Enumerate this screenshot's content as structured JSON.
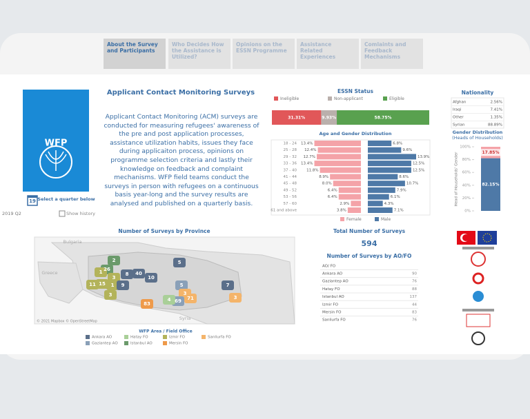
{
  "tabs": [
    "About the Survey and Participants",
    "Who Decides How the Assistance is Utilized?",
    "Opinions on the ESSN Programme",
    "Assistance Related Experiences",
    "Comlaints and Feedback Mechanisms"
  ],
  "sidebar": {
    "logo": "WFP",
    "calendar_day": "19",
    "select_label": "Select a quarter below",
    "quarter": "2019 Q2",
    "show_history": "Show history"
  },
  "intro": {
    "title": "Applicant Contact Monitoring Surveys",
    "text": "Applicant Contact Monitoring (ACM) surveys are conducted for measuring refugees' awareness of the pre and post application processes, assistance utilization habits, issues they face during applicaiton process, opinions on programme selection criteria and lastly their knowledge on feedback and complaint mechanisms. WFP field teams conduct the surveys in person with refugees on a continuous basis year-long and the survey results are analysed and published on a quarterly basis."
  },
  "chart_data": [
    {
      "type": "stacked-bar",
      "title": "ESSN Status",
      "series": [
        {
          "name": "Ineligible",
          "color": "#e15759",
          "values": [
            31.31
          ],
          "value_labels": [
            "31.31%"
          ]
        },
        {
          "name": "Non-applicant",
          "color": "#bab0ac",
          "values": [
            9.93
          ],
          "value_labels": [
            "9.93%"
          ]
        },
        {
          "name": "Eligible",
          "color": "#59a14f",
          "values": [
            58.75
          ],
          "value_labels": [
            "58.75%"
          ]
        }
      ]
    },
    {
      "type": "butterfly",
      "title": "Age and Gender Distribution",
      "categories": [
        "18 - 24",
        "25 - 28",
        "29 - 32",
        "33 - 36",
        "37 - 40",
        "41 - 44",
        "45 - 48",
        "49 - 52",
        "53 - 56",
        "57 - 60",
        "61 and above"
      ],
      "series": [
        {
          "name": "Female",
          "color": "#f4a3a8",
          "values": [
            13.4,
            12.4,
            12.7,
            13.4,
            11.8,
            8.9,
            8.0,
            6.4,
            6.4,
            2.9,
            3.8
          ],
          "value_labels": [
            "13.4%",
            "12.4%",
            "12.7%",
            "13.4%",
            "11.8%",
            "8.9%",
            "8.0%",
            "6.4%",
            "6.4%",
            "2.9%",
            "3.8%"
          ]
        },
        {
          "name": "Male",
          "color": "#4e79a7",
          "values": [
            6.8,
            9.6,
            13.9,
            12.5,
            12.5,
            8.6,
            10.7,
            7.9,
            6.1,
            4.3,
            7.1
          ],
          "value_labels": [
            "6.8%",
            "9.6%",
            "13.9%",
            "12.5%",
            "12.5%",
            "8.6%",
            "10.7%",
            "7.9%",
            "6.1%",
            "4.3%",
            "7.1%"
          ]
        }
      ]
    },
    {
      "type": "stacked-column",
      "title": "Gender Distribution",
      "subtitle": "(Heads of Households)",
      "y_label": "Head of Households' Gender",
      "ylim": [
        0,
        100
      ],
      "yticks": [
        {
          "value": 0,
          "label": "0%"
        },
        {
          "value": 20,
          "label": "20%"
        },
        {
          "value": 40,
          "label": "40%"
        },
        {
          "value": 60,
          "label": "60%"
        },
        {
          "value": 80,
          "label": "80%"
        },
        {
          "value": 100,
          "label": "100%"
        }
      ],
      "series": [
        {
          "color": "#4e79a7",
          "values": [
            82.15
          ],
          "value_labels": [
            "82.15%"
          ]
        },
        {
          "color": "#f4a3a8",
          "values": [
            17.85
          ],
          "value_labels": [
            "17.85%"
          ]
        }
      ]
    }
  ],
  "nationality": {
    "title": "Nationality",
    "rows": [
      [
        "Afghan",
        "2.56%"
      ],
      [
        "Iraqi",
        "7.41%"
      ],
      [
        "Other",
        "1.35%"
      ],
      [
        "Syrian",
        "88.89%"
      ]
    ]
  },
  "map": {
    "title": "Number of Surveys by Province",
    "labels": [
      26,
      2,
      1,
      3,
      15,
      11,
      1,
      3,
      9,
      8,
      40,
      10,
      5,
      5,
      3,
      71,
      69,
      4,
      83,
      7,
      3
    ],
    "places": [
      "Bulgaria",
      "Greece",
      "Syria"
    ],
    "credit": "© 2021 Mapbox © OpenStreetMap",
    "legend_title": "WFP Area / Field Office",
    "offices": [
      {
        "name": "Ankara AO",
        "color": "#5b6f8a"
      },
      {
        "name": "Gaziantep AO",
        "color": "#8aa0b8"
      },
      {
        "name": "Hatay FO",
        "color": "#a9cf98"
      },
      {
        "name": "Istanbul AO",
        "color": "#6b9a6b"
      },
      {
        "name": "Izmir FO",
        "color": "#b3b35a"
      },
      {
        "name": "Mersin FO",
        "color": "#ee9a4a"
      },
      {
        "name": "Sanliurfa FO",
        "color": "#f4b46a"
      }
    ]
  },
  "totals": {
    "title": "Total Number of Surveys",
    "value": "594",
    "table_title": "Number of Surveys by AO/FO",
    "header": "AO/ FO",
    "rows": [
      [
        "Ankara AO",
        "90"
      ],
      [
        "Gaziantep AO",
        "76"
      ],
      [
        "Hatay FO",
        "88"
      ],
      [
        "Istanbul AO",
        "137"
      ],
      [
        "Izmir FO",
        "44"
      ],
      [
        "Mersin FO",
        "83"
      ],
      [
        "Sanliurfa FO",
        "76"
      ]
    ]
  }
}
